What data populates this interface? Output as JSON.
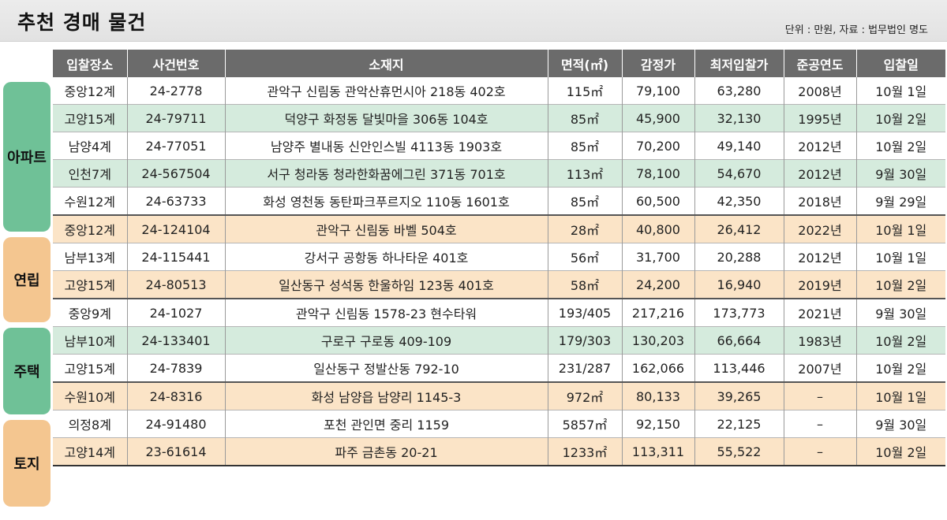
{
  "header": {
    "title": "추천 경매 물건",
    "source": "단위 : 만원, 자료 : 법무법인 명도"
  },
  "categories": [
    "아파트",
    "연립",
    "주택",
    "토지"
  ],
  "columns": [
    "입찰장소",
    "사건번호",
    "소재지",
    "면적(㎡)",
    "감정가",
    "최저입찰가",
    "준공연도",
    "입찰일"
  ],
  "rows": [
    [
      "중앙12계",
      "24-2778",
      "관악구 신림동 관악산휴먼시아 218동 402호",
      "115㎡",
      "79,100",
      "63,280",
      "2008년",
      "10월 1일"
    ],
    [
      "고양15계",
      "24-79711",
      "덕양구 화정동 달빛마을 306동 104호",
      "85㎡",
      "45,900",
      "32,130",
      "1995년",
      "10월 2일"
    ],
    [
      "남양4계",
      "24-77051",
      "남양주 별내동 신안인스빌 4113동 1903호",
      "85㎡",
      "70,200",
      "49,140",
      "2012년",
      "10월 2일"
    ],
    [
      "인천7계",
      "24-567504",
      "서구 청라동 청라한화꿈에그린 371동 701호",
      "113㎡",
      "78,100",
      "54,670",
      "2012년",
      "9월 30일"
    ],
    [
      "수원12계",
      "24-63733",
      "화성 영천동 동탄파크푸르지오 110동 1601호",
      "85㎡",
      "60,500",
      "42,350",
      "2018년",
      "9월 29일"
    ],
    [
      "중앙12계",
      "24-124104",
      "관악구 신림동 바벨 504호",
      "28㎡",
      "40,800",
      "26,412",
      "2022년",
      "10월 1일"
    ],
    [
      "남부13계",
      "24-115441",
      "강서구 공항동 하나타운 401호",
      "56㎡",
      "31,700",
      "20,288",
      "2012년",
      "10월 1일"
    ],
    [
      "고양15계",
      "24-80513",
      "일산동구 성석동 한울하임 123동 401호",
      "58㎡",
      "24,200",
      "16,940",
      "2019년",
      "10월 2일"
    ],
    [
      "중앙9계",
      "24-1027",
      "관악구 신림동 1578-23 현수타워",
      "193/405",
      "217,216",
      "173,773",
      "2021년",
      "9월 30일"
    ],
    [
      "남부10계",
      "24-133401",
      "구로구 구로동 409-109",
      "179/303",
      "130,203",
      "66,664",
      "1983년",
      "10월 2일"
    ],
    [
      "고양15계",
      "24-7839",
      "일산동구 정발산동 792-10",
      "231/287",
      "162,066",
      "113,446",
      "2007년",
      "10월 2일"
    ],
    [
      "수원10계",
      "24-8316",
      "화성 남양읍 남양리 1145-3",
      "972㎡",
      "80,133",
      "39,265",
      "–",
      "10월 1일"
    ],
    [
      "의정8계",
      "24-91480",
      "포천 관인면 중리 1159",
      "5857㎡",
      "92,150",
      "22,125",
      "–",
      "9월 30일"
    ],
    [
      "고양14계",
      "23-61614",
      "파주 금촌동 20-21",
      "1233㎡",
      "113,311",
      "55,522",
      "–",
      "10월 2일"
    ]
  ]
}
